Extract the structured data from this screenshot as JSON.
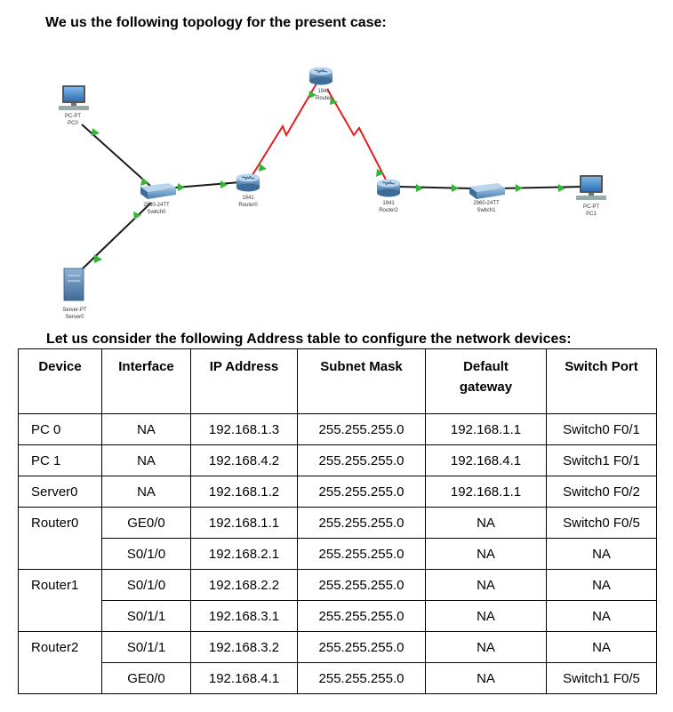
{
  "heading_topology": "We us the following topology for the present case:",
  "heading_table": "Let us consider the following Address table to configure the network devices:",
  "topology": {
    "devices": [
      {
        "id": "pc0",
        "type": "pc",
        "model": "PC-PT",
        "name": "PC0"
      },
      {
        "id": "switch0",
        "type": "switch",
        "model": "2960-24TT",
        "name": "Switch0"
      },
      {
        "id": "server0",
        "type": "server",
        "model": "Server-PT",
        "name": "Server0"
      },
      {
        "id": "router0",
        "type": "router",
        "model": "1941",
        "name": "Router0"
      },
      {
        "id": "router1",
        "type": "router",
        "model": "1941",
        "name": "Router"
      },
      {
        "id": "router2",
        "type": "router",
        "model": "1941",
        "name": "Router2"
      },
      {
        "id": "switch1",
        "type": "switch",
        "model": "2960-24TT",
        "name": "Switch1"
      },
      {
        "id": "pc1",
        "type": "pc",
        "model": "PC-PT",
        "name": "PC1"
      }
    ],
    "links": [
      {
        "from": "pc0",
        "to": "switch0",
        "kind": "ethernet",
        "color": "#1a1a1a"
      },
      {
        "from": "server0",
        "to": "switch0",
        "kind": "ethernet",
        "color": "#1a1a1a"
      },
      {
        "from": "switch0",
        "to": "router0",
        "kind": "ethernet",
        "color": "#1a1a1a"
      },
      {
        "from": "router0",
        "to": "router1",
        "kind": "serial",
        "color": "#e02020"
      },
      {
        "from": "router1",
        "to": "router2",
        "kind": "serial",
        "color": "#e02020"
      },
      {
        "from": "router2",
        "to": "switch1",
        "kind": "ethernet",
        "color": "#1a1a1a"
      },
      {
        "from": "switch1",
        "to": "pc1",
        "kind": "ethernet",
        "color": "#1a1a1a"
      }
    ],
    "link_light_color": "#37b337"
  },
  "table": {
    "headers": [
      "Device",
      "Interface",
      "IP Address",
      "Subnet Mask",
      "Default gateway",
      "Switch Port"
    ],
    "rows": [
      {
        "device": "PC 0",
        "interface": "NA",
        "ip": "192.168.1.3",
        "mask": "255.255.255.0",
        "gateway": "192.168.1.1",
        "port": "Switch0 F0/1"
      },
      {
        "device": "PC 1",
        "interface": "NA",
        "ip": "192.168.4.2",
        "mask": "255.255.255.0",
        "gateway": "192.168.4.1",
        "port": "Switch1 F0/1"
      },
      {
        "device": "Server0",
        "interface": "NA",
        "ip": "192.168.1.2",
        "mask": "255.255.255.0",
        "gateway": "192.168.1.1",
        "port": "Switch0 F0/2"
      },
      {
        "device": "Router0",
        "interface": "GE0/0",
        "ip": "192.168.1.1",
        "mask": "255.255.255.0",
        "gateway": "NA",
        "port": "Switch0 F0/5"
      },
      {
        "device": "",
        "interface": "S0/1/0",
        "ip": "192.168.2.1",
        "mask": "255.255.255.0",
        "gateway": "NA",
        "port": "NA"
      },
      {
        "device": "Router1",
        "interface": "S0/1/0",
        "ip": "192.168.2.2",
        "mask": "255.255.255.0",
        "gateway": "NA",
        "port": "NA"
      },
      {
        "device": "",
        "interface": "S0/1/1",
        "ip": "192.168.3.1",
        "mask": "255.255.255.0",
        "gateway": "NA",
        "port": "NA"
      },
      {
        "device": "Router2",
        "interface": "S0/1/1",
        "ip": "192.168.3.2",
        "mask": "255.255.255.0",
        "gateway": "NA",
        "port": "NA"
      },
      {
        "device": "",
        "interface": "GE0/0",
        "ip": "192.168.4.1",
        "mask": "255.255.255.0",
        "gateway": "NA",
        "port": "Switch1 F0/5"
      }
    ]
  }
}
